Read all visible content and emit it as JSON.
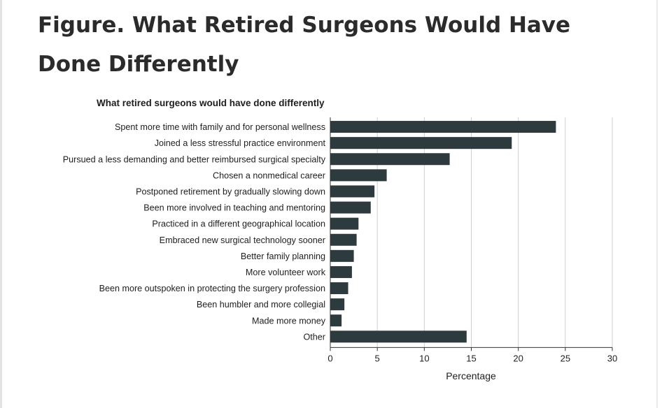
{
  "figure": {
    "title": "Figure.  What Retired Surgeons Would Have Done Differently"
  },
  "colors": {
    "bar": "#2d3a3e",
    "grid": "#cfcfcf",
    "axis": "#333333",
    "text": "#1e1e1e"
  },
  "chart_data": {
    "type": "bar",
    "orientation": "horizontal",
    "title": "What retired surgeons would have done differently",
    "xlabel": "Percentage",
    "ylabel": "",
    "xlim": [
      0,
      30
    ],
    "xticks": [
      0,
      5,
      10,
      15,
      20,
      25,
      30
    ],
    "grid": true,
    "categories": [
      "Spent more time with family and for personal wellness",
      "Joined a less stressful practice environment",
      "Pursued a less demanding and better reimbursed surgical specialty",
      "Chosen a nonmedical career",
      "Postponed retirement by gradually slowing down",
      "Been more involved in teaching and mentoring",
      "Practiced in a different geographical location",
      "Embraced new surgical technology sooner",
      "Better family planning",
      "More volunteer work",
      "Been more outspoken in protecting the surgery profession",
      "Been humbler and more collegial",
      "Made more money",
      "Other"
    ],
    "values": [
      24.0,
      19.3,
      12.7,
      6.0,
      4.7,
      4.3,
      3.0,
      2.8,
      2.5,
      2.3,
      1.9,
      1.5,
      1.2,
      14.5
    ]
  }
}
